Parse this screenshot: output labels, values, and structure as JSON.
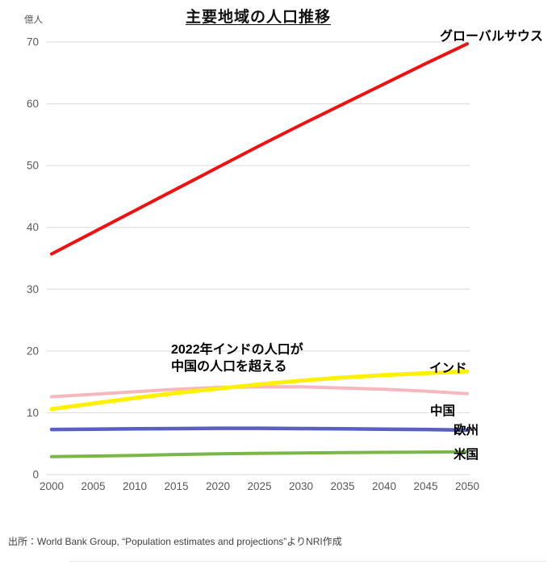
{
  "title": "主要地域の人口推移",
  "y_axis_unit": "億人",
  "annotation": {
    "line1": "2022年インドの人口が",
    "line2": "中国の人口を超える"
  },
  "line_labels": {
    "global_south": "グローバルサウス",
    "india": "インド",
    "china": "中国",
    "europe": "欧州",
    "usa": "米国"
  },
  "source": "出所：World Bank Group, “Population estimates and projections”よりNRI作成",
  "chart_data": {
    "type": "line",
    "title": "主要地域の人口推移",
    "xlabel": "",
    "ylabel": "億人",
    "x": [
      2000,
      2005,
      2010,
      2015,
      2020,
      2025,
      2030,
      2035,
      2040,
      2045,
      2050
    ],
    "ylim": [
      0,
      70
    ],
    "y_ticks": [
      0,
      10,
      20,
      30,
      40,
      50,
      60,
      70
    ],
    "grid": true,
    "grid_color": "#d9d9d9",
    "axis_text_color": "#595959",
    "legend_position": "end-of-line-labels",
    "annotation": "2022年インドの人口が中国の人口を超える",
    "series": [
      {
        "id": "global-south",
        "name": "グローバルサウス",
        "color": "#ee1111",
        "values": [
          35.7,
          39.2,
          42.7,
          46.2,
          49.7,
          53.2,
          56.6,
          59.9,
          63.2,
          66.5,
          69.7
        ]
      },
      {
        "id": "china",
        "name": "中国",
        "color": "#f6b8bd",
        "values": [
          12.6,
          13.0,
          13.4,
          13.8,
          14.1,
          14.2,
          14.2,
          14.0,
          13.8,
          13.5,
          13.1
        ]
      },
      {
        "id": "india",
        "name": "インド",
        "color": "#fdf000",
        "values": [
          10.6,
          11.5,
          12.4,
          13.2,
          13.9,
          14.6,
          15.2,
          15.7,
          16.1,
          16.4,
          16.7
        ]
      },
      {
        "id": "europe",
        "name": "欧州",
        "color": "#5b5fc2",
        "values": [
          7.3,
          7.35,
          7.4,
          7.45,
          7.5,
          7.5,
          7.45,
          7.4,
          7.35,
          7.3,
          7.2
        ]
      },
      {
        "id": "usa",
        "name": "米国",
        "color": "#7ab648",
        "values": [
          2.9,
          3.0,
          3.1,
          3.25,
          3.35,
          3.45,
          3.5,
          3.55,
          3.6,
          3.65,
          3.7
        ]
      }
    ]
  }
}
